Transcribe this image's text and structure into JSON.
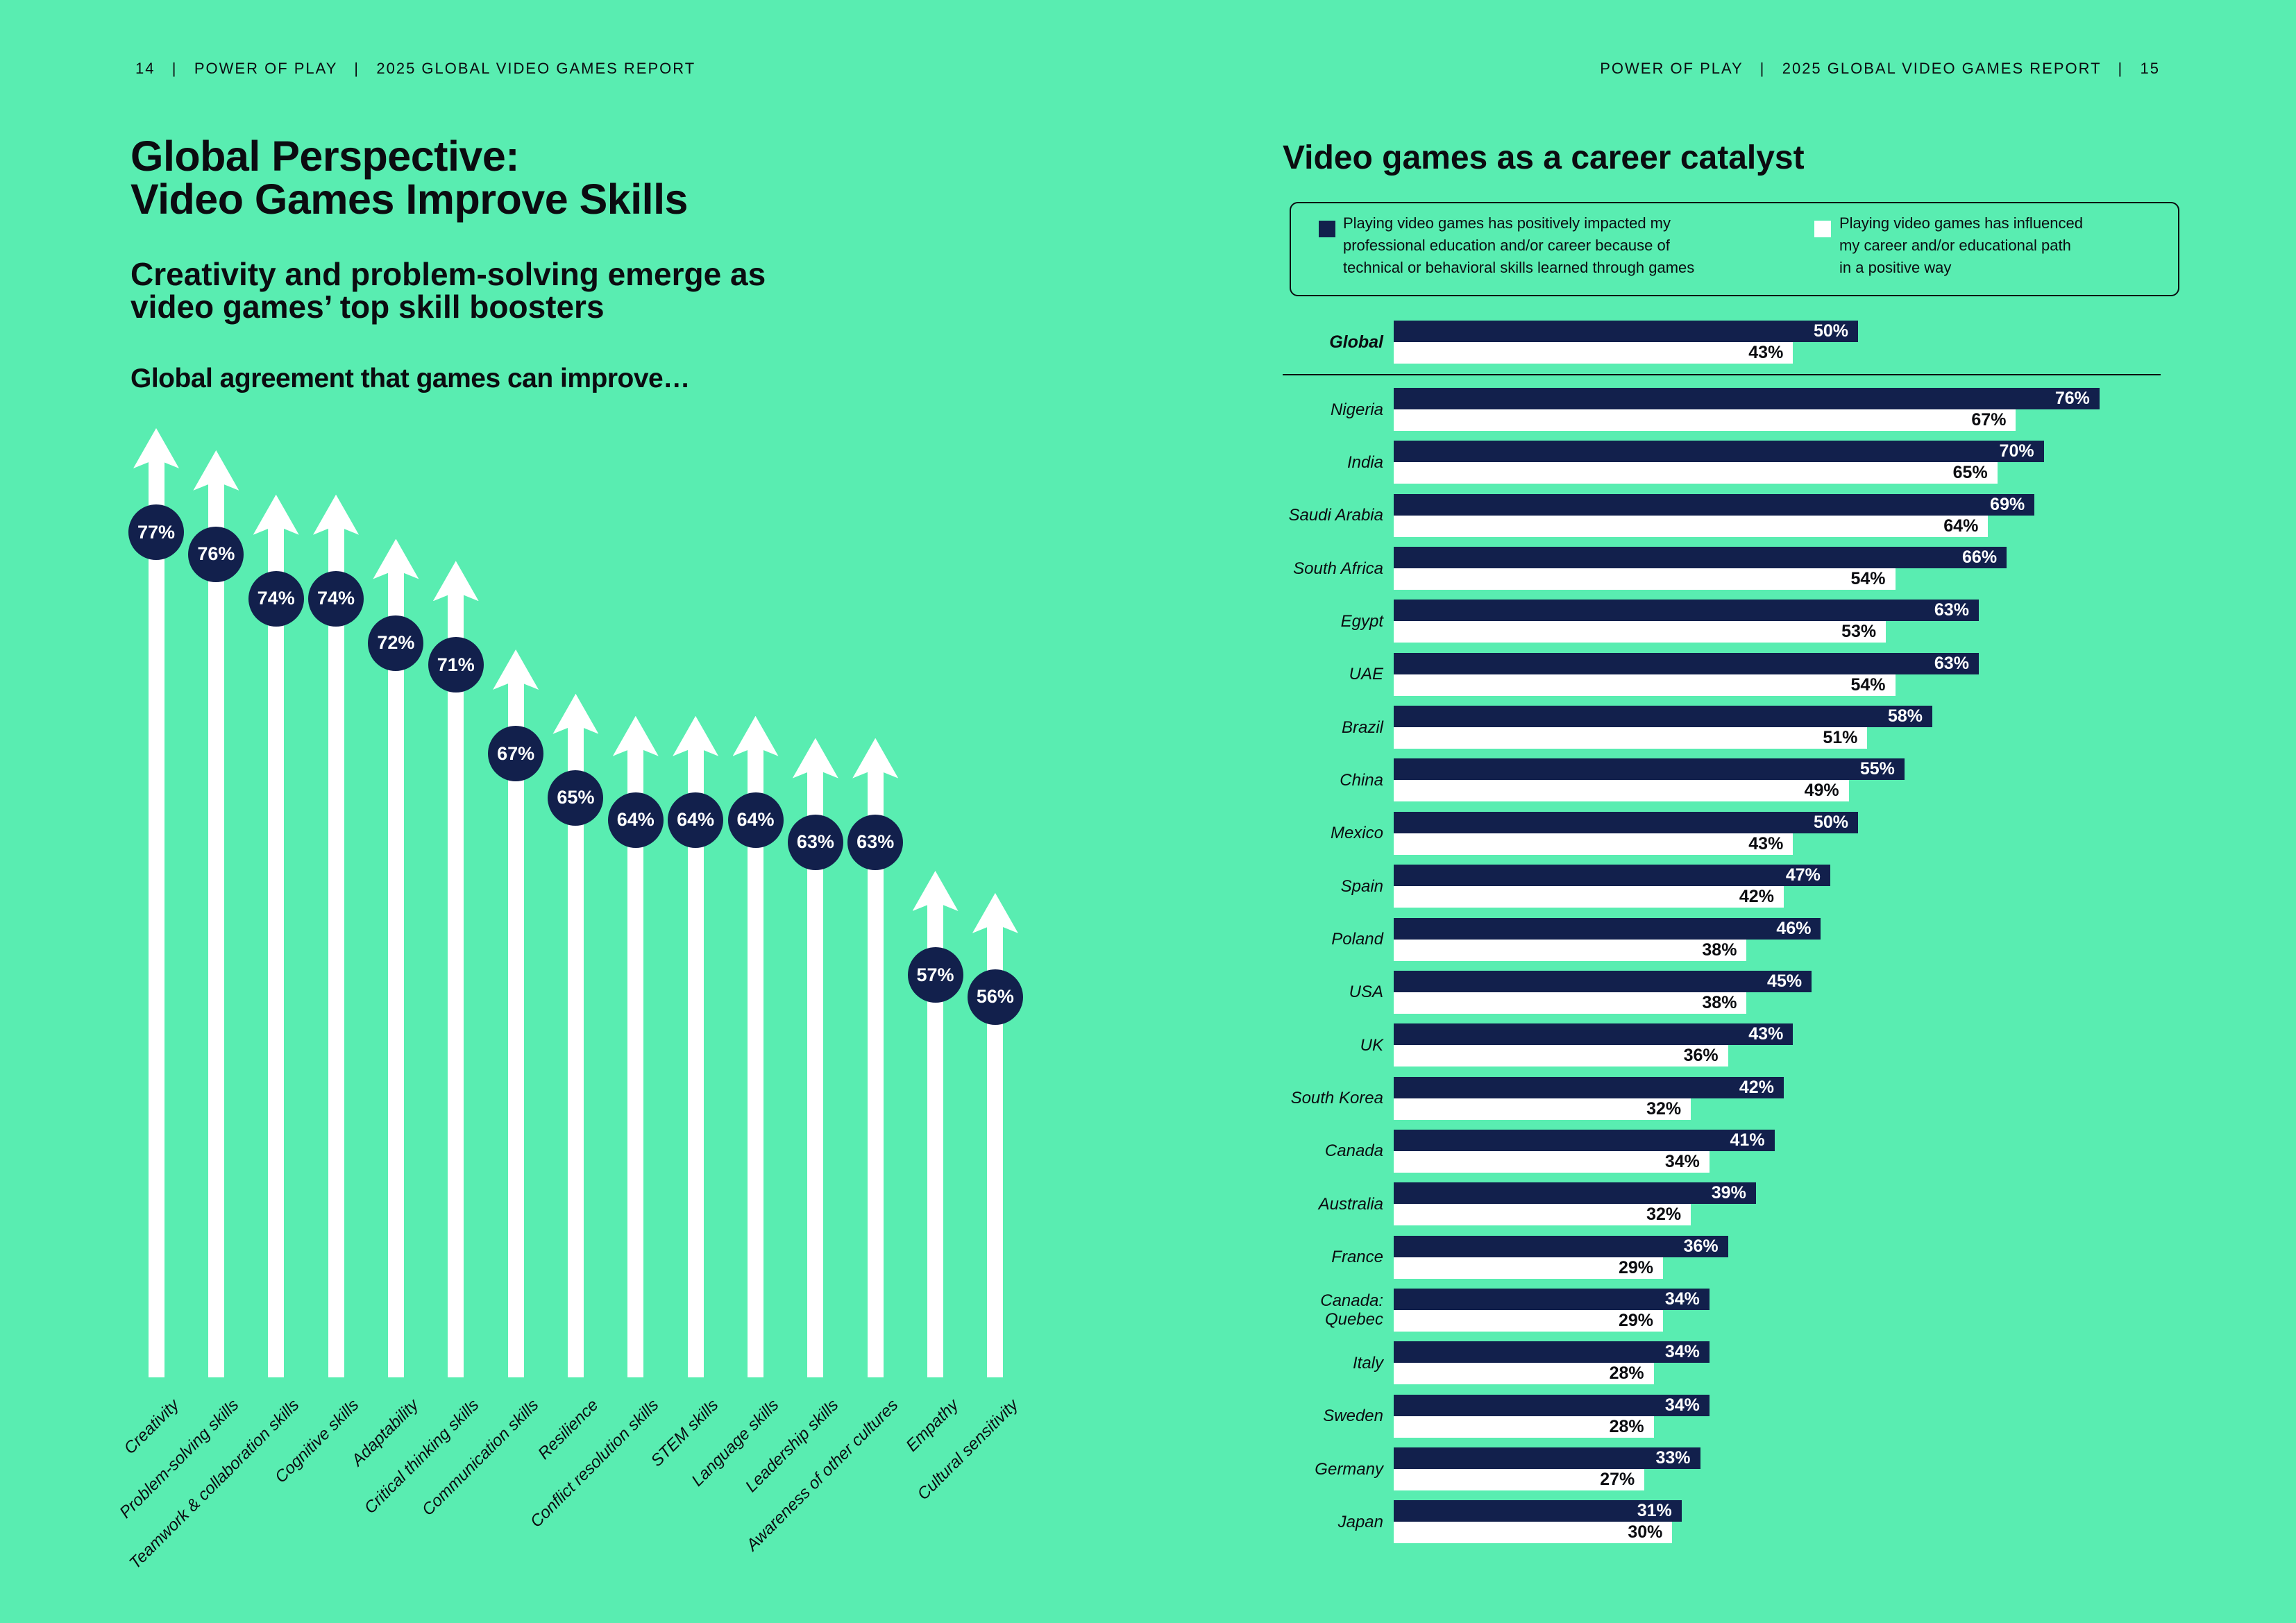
{
  "colors": {
    "background": "#59EDB1",
    "navy": "#12204C",
    "ink": "#0B0C10",
    "white": "#FFFFFF"
  },
  "header_left": "14   |   POWER OF PLAY   |   2025 GLOBAL VIDEO GAMES REPORT",
  "header_right": "POWER OF PLAY   |   2025 GLOBAL VIDEO GAMES REPORT   |   15",
  "left_page": {
    "title_line1": "Global Perspective:",
    "title_line2": "Video Games Improve Skills",
    "subtitle_line1": "Creativity and problem-solving emerge as",
    "subtitle_line2": "video games’ top skill boosters",
    "section_heading": "Global agreement that games can improve…"
  },
  "right_page": {
    "title": "Video games as a career catalyst",
    "legend": [
      {
        "swatch": "#12204C",
        "lines": [
          "Playing video games has positively impacted my",
          "professional education and/or career because of",
          "technical or behavioral skills learned through games"
        ]
      },
      {
        "swatch": "#FFFFFF",
        "lines": [
          "Playing video games has influenced",
          "my career and/or educational path",
          "in a positive way"
        ]
      }
    ]
  },
  "chart_data": [
    {
      "type": "bar",
      "variant": "vertical-arrow-chart",
      "title": "Global agreement that games can improve…",
      "unit": "%",
      "categories": [
        "Creativity",
        "Problem-solving skills",
        "Teamwork & collaboration skills",
        "Cognitive skills",
        "Adaptability",
        "Critical thinking skills",
        "Communication skills",
        "Resilience",
        "Conflict resolution skills",
        "STEM skills",
        "Language skills",
        "Leadership skills",
        "Awareness of other cultures",
        "Empathy",
        "Cultural sensitivity"
      ],
      "values": [
        77,
        76,
        74,
        74,
        72,
        71,
        67,
        65,
        64,
        64,
        64,
        63,
        63,
        57,
        56
      ]
    },
    {
      "type": "bar",
      "variant": "horizontal-grouped",
      "title": "Video games as a career catalyst",
      "unit": "%",
      "categories": [
        "Global",
        "Nigeria",
        "India",
        "Saudi Arabia",
        "South Africa",
        "Egypt",
        "UAE",
        "Brazil",
        "China",
        "Mexico",
        "Spain",
        "Poland",
        "USA",
        "UK",
        "South Korea",
        "Canada",
        "Australia",
        "France",
        "Canada:\nQuebec",
        "Italy",
        "Sweden",
        "Germany",
        "Japan"
      ],
      "series": [
        {
          "name": "Playing video games has positively impacted my professional education and/or career because of technical or behavioral skills learned through games",
          "color": "#12204C",
          "values": [
            50,
            76,
            70,
            69,
            66,
            63,
            63,
            58,
            55,
            50,
            47,
            46,
            45,
            43,
            42,
            41,
            39,
            36,
            34,
            34,
            34,
            33,
            31
          ]
        },
        {
          "name": "Playing video games has influenced my career and/or educational path in a positive way",
          "color": "#FFFFFF",
          "values": [
            43,
            67,
            65,
            64,
            54,
            53,
            54,
            51,
            49,
            43,
            42,
            38,
            38,
            36,
            32,
            34,
            32,
            29,
            29,
            28,
            28,
            27,
            30
          ]
        }
      ],
      "xlim": [
        0,
        76
      ]
    }
  ]
}
